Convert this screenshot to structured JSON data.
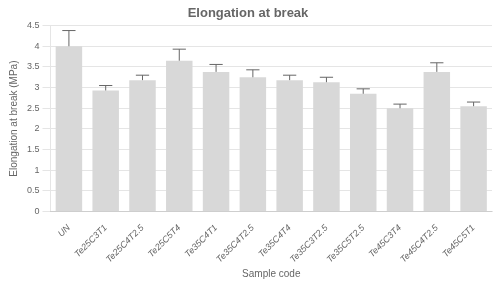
{
  "chart_data": {
    "type": "bar",
    "title": "Elongation at break",
    "xlabel": "Sample code",
    "ylabel": "Elongation at break (MPa)",
    "categories": [
      "UN",
      "Te25C3T1",
      "Te25C4T2.5",
      "Te25C5T4",
      "Te35C4T1",
      "Te35C4T2.5",
      "Te35C4T4",
      "Te35C3T2.5",
      "Te35C5T2.5",
      "Te45C3T4",
      "Te45C4T2.5",
      "Te45C5T1"
    ],
    "values": [
      4.0,
      2.93,
      3.18,
      3.65,
      3.38,
      3.25,
      3.18,
      3.13,
      2.85,
      2.5,
      3.38,
      2.55
    ],
    "errors": [
      0.38,
      0.12,
      0.12,
      0.28,
      0.18,
      0.18,
      0.12,
      0.12,
      0.12,
      0.1,
      0.22,
      0.1
    ],
    "color": "#d8d8d8",
    "ylim": [
      0,
      4.5
    ],
    "yticks": [
      0,
      0.5,
      1,
      1.5,
      2,
      2.5,
      3,
      3.5,
      4,
      4.5
    ],
    "grid": true
  }
}
